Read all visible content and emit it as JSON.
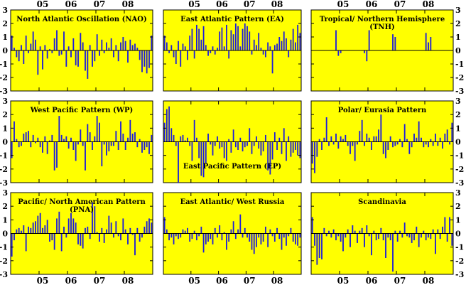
{
  "chart_data": {
    "type": "bar",
    "x_tick_labels": [
      "05",
      "06",
      "07",
      "08"
    ],
    "x_tick_years": [
      2005,
      2006,
      2007,
      2008
    ],
    "x_range": [
      "2004-01",
      "2008-12"
    ],
    "y_ticks": [
      3,
      2,
      1,
      0,
      -1,
      -2,
      -3
    ],
    "ylim": [
      -3,
      3
    ],
    "colors": {
      "background": "#ffff00",
      "bar": "#1c1cdc",
      "axis": "#000000"
    },
    "panels": [
      {
        "title": [
          "North Atlantic Oscillation (NAO)"
        ],
        "title_position": "top-center",
        "values": [
          1.1,
          0.2,
          -0.5,
          -0.8,
          0.4,
          -1.0,
          1.1,
          -0.2,
          0.5,
          1.4,
          0.8,
          -1.8,
          0.3,
          -1.4,
          0.4,
          -0.6,
          0.1,
          -0.2,
          0.9,
          1.5,
          -0.4,
          -0.3,
          1.4,
          -1.2,
          0.3,
          -0.5,
          0.9,
          -1.1,
          -1.2,
          1.3,
          0.6,
          -1.5,
          -2.1,
          0.4,
          -1.2,
          -0.8,
          1.2,
          -0.4,
          0.8,
          -0.2,
          0.6,
          0.2,
          0.9,
          -0.5,
          0.4,
          -0.8,
          0.6,
          1.0,
          0.7,
          -0.9,
          0.8,
          0.4,
          0.5,
          0.2,
          -0.7,
          -1.6,
          -1.2,
          -1.7,
          -1.3,
          1.1
        ]
      },
      {
        "title": [
          "East Atlantic Pattern (EA)"
        ],
        "title_position": "top-center",
        "values": [
          1.1,
          0.6,
          -0.2,
          0.4,
          -0.5,
          -1.0,
          0.7,
          -1.2,
          0.5,
          0.3,
          -0.7,
          1.1,
          1.6,
          -0.6,
          1.9,
          1.6,
          0.8,
          1.8,
          0.4,
          -0.4,
          -0.2,
          0.3,
          -0.3,
          0.2,
          1.4,
          1.7,
          0.3,
          1.9,
          -0.6,
          1.5,
          1.2,
          2.0,
          1.8,
          0.3,
          1.6,
          2.0,
          1.8,
          1.4,
          -0.3,
          0.8,
          0.4,
          1.3,
          0.2,
          -0.3,
          -0.5,
          0.6,
          0.3,
          -1.7,
          0.4,
          0.5,
          1.0,
          0.7,
          1.4,
          0.9,
          -0.5,
          0.8,
          1.6,
          0.6,
          1.9,
          1.3
        ]
      },
      {
        "title": [
          "Tropical/ Northern Hemisphere",
          "(TNH)"
        ],
        "title_position": "top-center",
        "values": [
          0,
          0,
          0,
          0,
          0,
          0,
          0,
          0,
          0,
          0,
          1.5,
          -0.4,
          -0.2,
          0,
          0,
          0,
          0,
          0,
          0,
          0,
          0,
          0,
          -0.2,
          -0.8,
          1.5,
          0,
          0,
          0,
          0,
          0,
          0,
          0,
          0,
          0,
          1.2,
          1.0,
          0,
          0,
          0,
          0,
          0,
          0,
          0,
          0,
          0,
          0,
          0,
          0,
          1.3,
          0.6,
          1.0,
          0,
          0,
          0,
          0,
          0,
          0,
          0,
          0,
          0
        ]
      },
      {
        "title": [
          "West Pacific Pattern (WP)"
        ],
        "title_position": "top-center",
        "values": [
          -1.2,
          1.5,
          0.2,
          -0.4,
          -0.3,
          0.6,
          0.7,
          0.8,
          -0.4,
          0.5,
          -0.1,
          0.3,
          -0.4,
          -0.8,
          0.4,
          -0.9,
          0.1,
          0.5,
          -2.1,
          -1.9,
          1.9,
          0.5,
          0.2,
          0.4,
          -0.5,
          0.3,
          -0.6,
          -1.4,
          -0.2,
          0.9,
          -0.3,
          -2.1,
          1.3,
          0.7,
          -0.6,
          0.4,
          1.9,
          1.4,
          -1.8,
          -0.2,
          -1.0,
          -0.7,
          -0.3,
          -0.3,
          0.8,
          -0.6,
          1.5,
          0.6,
          -0.6,
          0.3,
          1.6,
          0.6,
          0.7,
          -0.4,
          0.2,
          -0.8,
          -0.6,
          -0.4,
          -0.9,
          0.5
        ]
      },
      {
        "title": [
          "East Pacific Pattern (EP)"
        ],
        "title_position": "bottom-center",
        "values": [
          1.4,
          2.4,
          2.6,
          1.0,
          0.5,
          -0.3,
          -3.0,
          0.4,
          0.5,
          0.1,
          0.3,
          -0.3,
          -1.4,
          1.6,
          0.3,
          -1.2,
          -2.5,
          -2.6,
          -1.6,
          0.6,
          -0.2,
          -1.0,
          -0.3,
          0.4,
          -0.5,
          -0.4,
          -1.2,
          -1.4,
          0.2,
          -0.8,
          0.9,
          -0.4,
          -0.6,
          0.3,
          -0.7,
          -0.4,
          -0.3,
          1.0,
          -0.9,
          -0.3,
          0.4,
          -0.5,
          -1.0,
          -0.7,
          0.5,
          -2.1,
          -2.4,
          -1.3,
          0.7,
          -0.6,
          0.3,
          -0.9,
          1.0,
          -1.4,
          0.4,
          -1.1,
          -0.8,
          -0.6,
          -1.0,
          -1.2
        ]
      },
      {
        "title": [
          "Polar/ Eurasia Pattern"
        ],
        "title_position": "top-center",
        "values": [
          -1.6,
          -2.3,
          -1.1,
          0.2,
          -0.6,
          0.3,
          1.8,
          -0.3,
          0.4,
          -0.2,
          0.6,
          -0.5,
          0.4,
          0.2,
          0.5,
          -0.3,
          -0.9,
          -0.3,
          -1.4,
          -0.2,
          0.8,
          1.6,
          -0.3,
          0.6,
          0.3,
          -0.6,
          0.4,
          0.4,
          0.9,
          2.0,
          -0.9,
          -1.2,
          -0.6,
          0.4,
          -0.4,
          -0.3,
          -0.2,
          0.2,
          -0.4,
          1.3,
          0.2,
          -0.9,
          -0.4,
          0.6,
          0.3,
          1.5,
          0.3,
          -0.4,
          -0.2,
          -0.4,
          0.2,
          -0.3,
          0.6,
          -0.3,
          0.3,
          -0.5,
          0.6,
          0.9,
          -0.2,
          1.4
        ]
      },
      {
        "title": [
          "Pacific/ North American Pattern",
          "(PNA)"
        ],
        "title_position": "top-center",
        "values": [
          -1.7,
          -0.5,
          0.3,
          0.4,
          0.2,
          0.6,
          -1.3,
          0.5,
          0.4,
          0.8,
          0.9,
          1.3,
          1.5,
          0.4,
          0.6,
          1.0,
          -0.6,
          -0.5,
          -1.2,
          1.1,
          1.6,
          -1.3,
          0.5,
          -0.3,
          1.1,
          1.5,
          1.1,
          0.8,
          -0.8,
          -0.9,
          -1.1,
          0.4,
          0.5,
          -0.4,
          2.3,
          2.0,
          0.1,
          -0.6,
          0.4,
          -0.7,
          0.3,
          1.3,
          0.8,
          -0.3,
          0.9,
          -0.2,
          -0.5,
          1.1,
          0.3,
          -0.8,
          0.4,
          -0.1,
          -1.6,
          0.4,
          -0.6,
          -0.3,
          0.5,
          0.9,
          1.1,
          0.8
        ]
      },
      {
        "title": [
          "East Atlantic/ West Russia"
        ],
        "title_position": "top-center",
        "values": [
          1.2,
          0.3,
          -0.5,
          -0.3,
          -0.8,
          -0.2,
          -0.4,
          -0.3,
          0.3,
          0.2,
          0.4,
          -0.6,
          -0.4,
          0.2,
          -0.5,
          -0.2,
          0.5,
          -1.4,
          -0.8,
          -0.6,
          -0.4,
          -0.8,
          0.4,
          -0.3,
          0.6,
          -0.5,
          0.1,
          -1.2,
          -0.6,
          0.3,
          0.9,
          -0.4,
          0.3,
          1.4,
          -0.3,
          0.4,
          -0.3,
          -0.6,
          -1.2,
          -1.5,
          -1.0,
          -0.3,
          -0.8,
          -0.6,
          0.5,
          -1.0,
          0.3,
          -0.2,
          -0.6,
          0.4,
          -0.4,
          -1.2,
          -0.3,
          -0.9,
          -0.2,
          0.4,
          -0.6,
          -0.8,
          -0.9,
          -0.3
        ]
      },
      {
        "title": [
          "Scandinavia"
        ],
        "title_position": "top-center",
        "values": [
          1.2,
          -0.9,
          -2.3,
          -1.8,
          -1.9,
          0.4,
          -0.2,
          0.2,
          -0.3,
          0.3,
          -0.5,
          -0.2,
          -0.6,
          -1.3,
          -0.3,
          0.3,
          -1.0,
          0.6,
          0.2,
          -0.7,
          0.2,
          0.4,
          -1.0,
          0.6,
          -0.2,
          -1.6,
          0.2,
          -0.5,
          -0.4,
          0.4,
          -0.5,
          -1.8,
          -0.3,
          -0.5,
          -2.8,
          0.2,
          -0.6,
          0.2,
          -0.3,
          0.8,
          -0.2,
          -0.3,
          -0.7,
          -0.5,
          0.5,
          -1.0,
          -0.3,
          0.2,
          -0.5,
          -0.3,
          -0.4,
          0.3,
          -1.5,
          0.3,
          -0.4,
          0.5,
          1.2,
          -0.6,
          1.2,
          -0.9
        ]
      }
    ]
  }
}
